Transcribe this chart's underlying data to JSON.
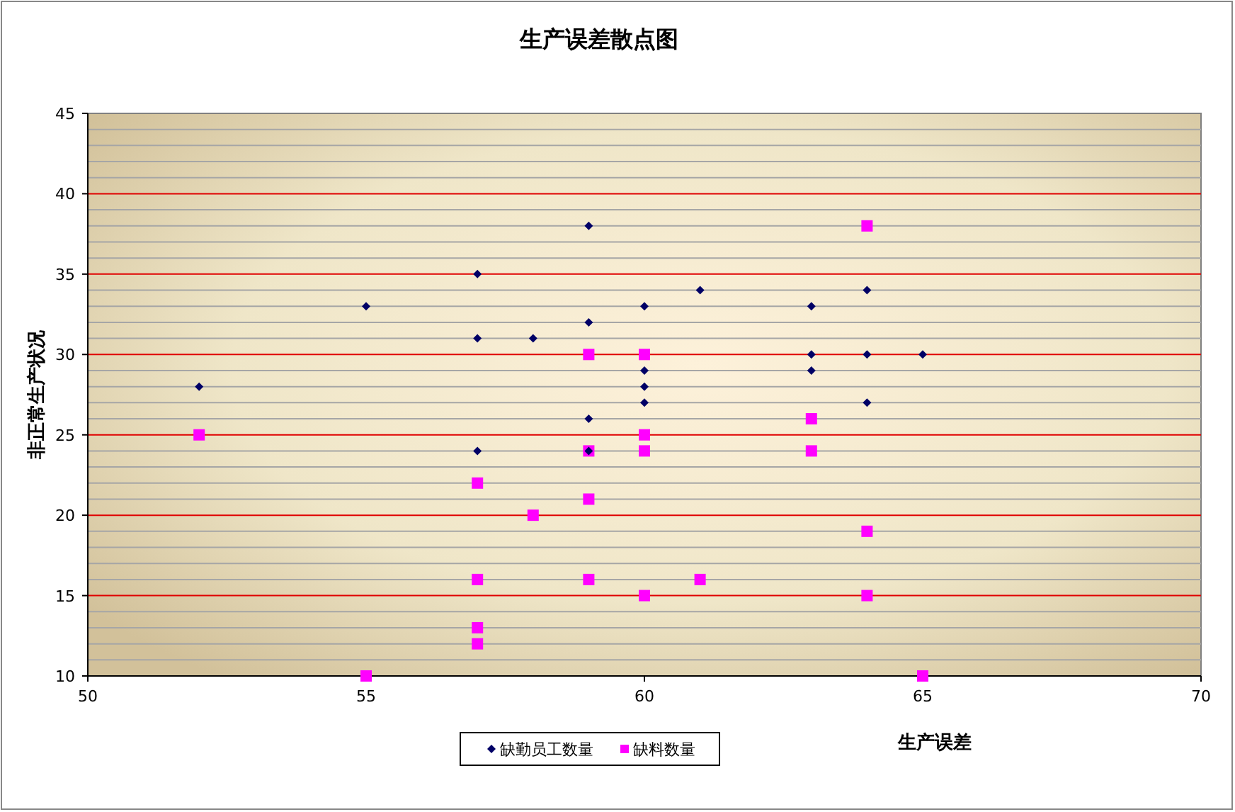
{
  "chart_data": {
    "type": "scatter",
    "title": "生产误差散点图",
    "xlabel": "生产误差",
    "ylabel": "非正常生产状况",
    "xlim": [
      50,
      70
    ],
    "xticks": [
      50,
      55,
      60,
      65,
      70
    ],
    "ylim": [
      10,
      45
    ],
    "yticks": [
      10,
      15,
      20,
      25,
      30,
      35,
      40,
      45
    ],
    "grid": "y",
    "legend": "bottom",
    "series": [
      {
        "name": "缺勤员工数量",
        "color": "#000066",
        "marker": "diamond",
        "x": [
          52,
          55,
          57,
          57,
          57,
          58,
          59,
          59,
          59,
          59,
          60,
          60,
          60,
          60,
          61,
          63,
          63,
          63,
          64,
          64,
          64,
          65
        ],
        "values": [
          28,
          33,
          35,
          31,
          24,
          31,
          38,
          32,
          26,
          24,
          33,
          29,
          28,
          27,
          34,
          33,
          30,
          29,
          34,
          30,
          27,
          30
        ]
      },
      {
        "name": "缺料数量",
        "color": "#ff00ff",
        "marker": "square",
        "x": [
          52,
          55,
          57,
          57,
          57,
          57,
          58,
          59,
          59,
          59,
          59,
          60,
          60,
          60,
          60,
          61,
          63,
          63,
          64,
          64,
          64,
          65
        ],
        "values": [
          25,
          10,
          22,
          16,
          13,
          12,
          20,
          30,
          24,
          21,
          16,
          30,
          25,
          24,
          15,
          16,
          26,
          24,
          38,
          19,
          15,
          10
        ]
      }
    ]
  }
}
